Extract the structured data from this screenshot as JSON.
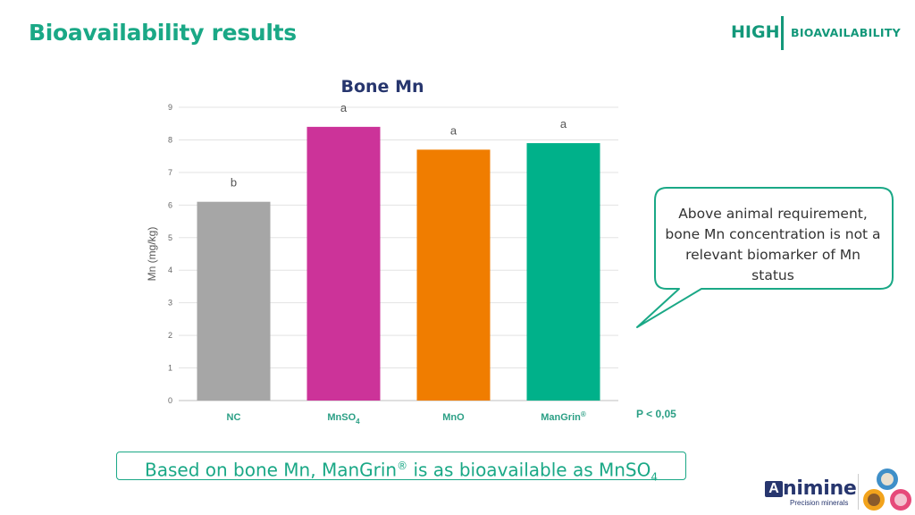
{
  "header": {
    "title": "Bioavailability results",
    "brand_high": "HIGH",
    "brand_bio": "BIOAVAILABILITY"
  },
  "chart_data": {
    "type": "bar",
    "title": "Bone Mn",
    "ylabel": "Mn (mg/kg)",
    "xlabel": "",
    "categories": [
      "NC",
      "MnSO4",
      "MnO",
      "ManGrin®"
    ],
    "values": [
      6.1,
      8.4,
      7.7,
      7.9
    ],
    "significance_letters": [
      "b",
      "a",
      "a",
      "a"
    ],
    "colors": [
      "#a6a6a6",
      "#cc3399",
      "#f07d00",
      "#00b18a"
    ],
    "ylim": [
      0,
      9
    ],
    "yticks": [
      0,
      1,
      2,
      3,
      4,
      5,
      6,
      7,
      8,
      9
    ],
    "grid": true,
    "legend": "none"
  },
  "callout": {
    "text": "Above animal requirement, bone Mn concentration is not a relevant biomarker of Mn status",
    "border_color": "#1aa886"
  },
  "p_value": "P < 0,05",
  "conclusion": {
    "before_sup": "Based on bone Mn, ManGrin",
    "sup": "®",
    "middle": " is as bioavailable as MnSO",
    "sub": "4"
  },
  "logo": {
    "mark": "A",
    "word": "nimine",
    "tagline": "Precision minerals"
  }
}
